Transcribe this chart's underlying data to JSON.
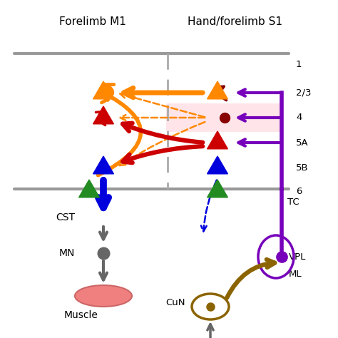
{
  "title_left": "Forelimb M1",
  "title_right": "Hand/forelimb S1",
  "layer_labels": [
    "1",
    "2/3",
    "4",
    "5A",
    "5B",
    "6"
  ],
  "colors": {
    "orange": "#FF8800",
    "red": "#CC0000",
    "blue": "#0000DD",
    "green": "#228B22",
    "purple": "#7700BB",
    "dark_red": "#880000",
    "gray": "#666666",
    "brown": "#8B6400",
    "cortex_line": "#999999",
    "pink_bg": "#FFD0D8"
  },
  "figsize": [
    4.74,
    4.74
  ],
  "dpi": 100
}
